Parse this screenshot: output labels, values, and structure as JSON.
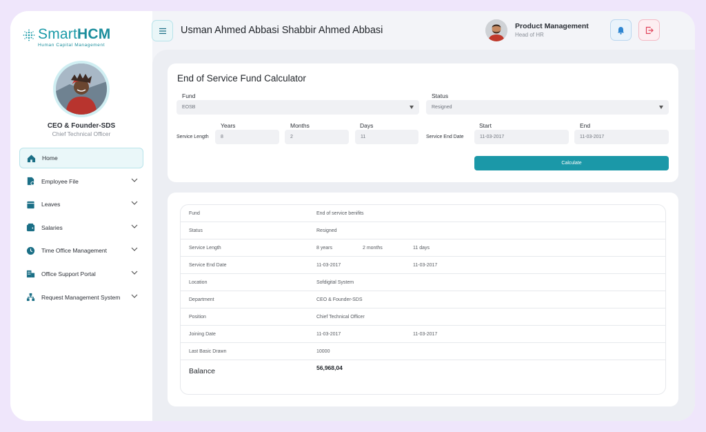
{
  "brand": {
    "name_light": "Smart",
    "name_bold": "HCM",
    "tagline": "Human Capital Management"
  },
  "profile": {
    "name": "CEO & Founder-SDS",
    "role": "Chief Technical Officer"
  },
  "nav": [
    {
      "label": "Home",
      "icon": "home-icon",
      "active": true
    },
    {
      "label": "Employee File",
      "icon": "file-icon"
    },
    {
      "label": "Leaves",
      "icon": "calendar-icon"
    },
    {
      "label": "Salaries",
      "icon": "wallet-icon"
    },
    {
      "label": "Time Office Management",
      "icon": "clock-icon"
    },
    {
      "label": "Office Support Portal",
      "icon": "building-icon"
    },
    {
      "label": "Request Management System",
      "icon": "hierarchy-icon"
    }
  ],
  "header": {
    "employee_name": "Usman Ahmed Abbasi Shabbir Ahmed Abbasi",
    "user_title": "Product Management",
    "user_sub": "Head of HR"
  },
  "calculator": {
    "title": "End of Service Fund Calculator",
    "fund_label": "Fund",
    "fund_value": "EOSB",
    "status_label": "Status",
    "status_value": "Resigned",
    "service_length_label": "Service Length",
    "years_label": "Years",
    "years_value": "8",
    "months_label": "Months",
    "months_value": "2",
    "days_label": "Days",
    "days_value": "11",
    "service_end_label": "Service End Date",
    "start_label": "Start",
    "start_value": "11-03-2017",
    "end_label": "End",
    "end_value": "11-03-2017",
    "calculate_label": "Calculate"
  },
  "results": {
    "rows": [
      {
        "label": "Fund",
        "v1": "End of service benifits"
      },
      {
        "label": "Status",
        "v1": "Resigned"
      },
      {
        "label": "Service Length",
        "v1": "8 years",
        "v2": "2 months",
        "v3": "11 days"
      },
      {
        "label": "Service End Date",
        "v1": "11-03-2017",
        "v3": "11-03-2017"
      },
      {
        "label": "Location",
        "v1": "Sofdigital System"
      },
      {
        "label": "Department",
        "v1": "CEO & Founder-SDS"
      },
      {
        "label": "Position",
        "v1": "Chief Technical Officer"
      },
      {
        "label": "Joining Date",
        "v1": "11-03-2017",
        "v3": "11-03-2017"
      },
      {
        "label": "Last Basic Drawn",
        "v1": "10000"
      }
    ],
    "balance_label": "Balance",
    "balance_value": "56,968,04"
  },
  "colors": {
    "accent": "#1b98a8",
    "danger": "#e0435a",
    "info": "#2f86d1"
  }
}
